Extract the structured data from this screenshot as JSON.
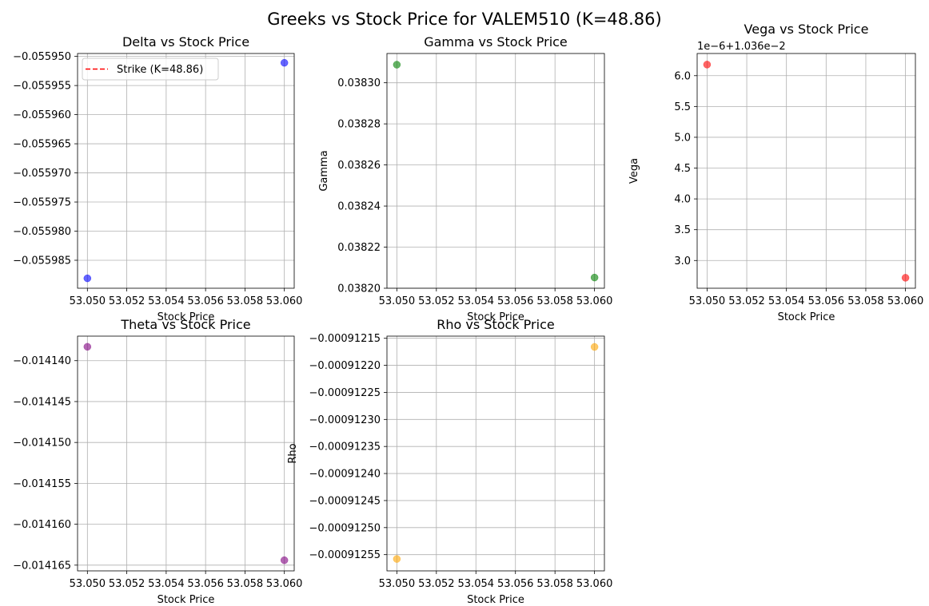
{
  "figure": {
    "title": "Greeks vs Stock Price for VALEM510 (K=48.86)"
  },
  "chart_data": [
    {
      "type": "scatter",
      "title": "Delta vs Stock Price",
      "xlabel": "Stock Price",
      "ylabel": "",
      "color": "#0000ff",
      "x": [
        53.05,
        53.06
      ],
      "y": [
        -0.0559881,
        -0.0559511
      ],
      "xlim": [
        53.0495,
        53.0605
      ],
      "ylim": [
        -0.0559898,
        -0.0559495
      ],
      "xticks": [
        "53.050",
        "53.052",
        "53.054",
        "53.056",
        "53.058",
        "53.060"
      ],
      "xtick_values": [
        53.05,
        53.052,
        53.054,
        53.056,
        53.058,
        53.06
      ],
      "yticks": [
        "−0.055950",
        "−0.055955",
        "−0.055960",
        "−0.055965",
        "−0.055970",
        "−0.055975",
        "−0.055980",
        "−0.055985"
      ],
      "ytick_values": [
        -0.05595,
        -0.055955,
        -0.05596,
        -0.055965,
        -0.05597,
        -0.055975,
        -0.05598,
        -0.055985
      ],
      "offset_text": "",
      "strike_line": {
        "value": 48.86,
        "color": "#ff0000"
      },
      "legend": {
        "position": "upper-left",
        "entries": [
          {
            "label": "Strike (K=48.86)",
            "color": "#ff0000",
            "style": "dashed"
          }
        ]
      },
      "grid": true
    },
    {
      "type": "scatter",
      "title": "Gamma vs Stock Price",
      "xlabel": "Stock Price",
      "ylabel": "Gamma",
      "color": "#008000",
      "x": [
        53.05,
        53.06
      ],
      "y": [
        0.0383088,
        0.0382052
      ],
      "xlim": [
        53.0495,
        53.0605
      ],
      "ylim": [
        0.0382,
        0.03831425
      ],
      "xticks": [
        "53.050",
        "53.052",
        "53.054",
        "53.056",
        "53.058",
        "53.060"
      ],
      "xtick_values": [
        53.05,
        53.052,
        53.054,
        53.056,
        53.058,
        53.06
      ],
      "yticks": [
        "0.03830",
        "0.03828",
        "0.03826",
        "0.03824",
        "0.03822",
        "0.03820"
      ],
      "ytick_values": [
        0.0383,
        0.03828,
        0.03826,
        0.03824,
        0.03822,
        0.0382
      ],
      "offset_text": "",
      "grid": true
    },
    {
      "type": "scatter",
      "title": "Vega vs Stock Price",
      "xlabel": "Stock Price",
      "ylabel": "Vega",
      "color": "#ff0000",
      "x": [
        53.05,
        53.06
      ],
      "y": [
        6.18,
        2.72
      ],
      "xlim": [
        53.0495,
        53.0605
      ],
      "ylim": [
        2.55,
        6.36
      ],
      "xticks": [
        "53.050",
        "53.052",
        "53.054",
        "53.056",
        "53.058",
        "53.060"
      ],
      "xtick_values": [
        53.05,
        53.052,
        53.054,
        53.056,
        53.058,
        53.06
      ],
      "yticks": [
        "6.0",
        "5.5",
        "5.0",
        "4.5",
        "4.0",
        "3.5",
        "3.0"
      ],
      "ytick_values": [
        6.0,
        5.5,
        5.0,
        4.5,
        4.0,
        3.5,
        3.0
      ],
      "offset_text": "1e−6+1.036e−2",
      "grid": true
    },
    {
      "type": "scatter",
      "title": "Theta vs Stock Price",
      "xlabel": "Stock Price",
      "ylabel": "",
      "color": "#800080",
      "x": [
        53.05,
        53.06
      ],
      "y": [
        -0.0141383,
        -0.0141644
      ],
      "xlim": [
        53.0495,
        53.0605
      ],
      "ylim": [
        -0.0141657,
        -0.014137
      ],
      "xticks": [
        "53.050",
        "53.052",
        "53.054",
        "53.056",
        "53.058",
        "53.060"
      ],
      "xtick_values": [
        53.05,
        53.052,
        53.054,
        53.056,
        53.058,
        53.06
      ],
      "yticks": [
        "−0.014140",
        "−0.014145",
        "−0.014150",
        "−0.014155",
        "−0.014160",
        "−0.014165"
      ],
      "ytick_values": [
        -0.01414,
        -0.014145,
        -0.01415,
        -0.014155,
        -0.01416,
        -0.014165
      ],
      "offset_text": "",
      "grid": true
    },
    {
      "type": "scatter",
      "title": "Rho vs Stock Price",
      "xlabel": "Stock Price",
      "ylabel": "Rho",
      "color": "#ffa500",
      "x": [
        53.05,
        53.06
      ],
      "y": [
        -0.000912558,
        -0.000912166
      ],
      "xlim": [
        53.0495,
        53.0605
      ],
      "ylim": [
        -0.00091258,
        -0.000912146
      ],
      "xticks": [
        "53.050",
        "53.052",
        "53.054",
        "53.056",
        "53.058",
        "53.060"
      ],
      "xtick_values": [
        53.05,
        53.052,
        53.054,
        53.056,
        53.058,
        53.06
      ],
      "yticks": [
        "−0.00091215",
        "−0.00091220",
        "−0.00091225",
        "−0.00091230",
        "−0.00091235",
        "−0.00091240",
        "−0.00091245",
        "−0.00091250",
        "−0.00091255"
      ],
      "ytick_values": [
        -0.00091215,
        -0.0009122,
        -0.00091225,
        -0.0009123,
        -0.00091235,
        -0.0009124,
        -0.00091245,
        -0.0009125,
        -0.00091255
      ],
      "offset_text": "",
      "grid": true
    }
  ]
}
